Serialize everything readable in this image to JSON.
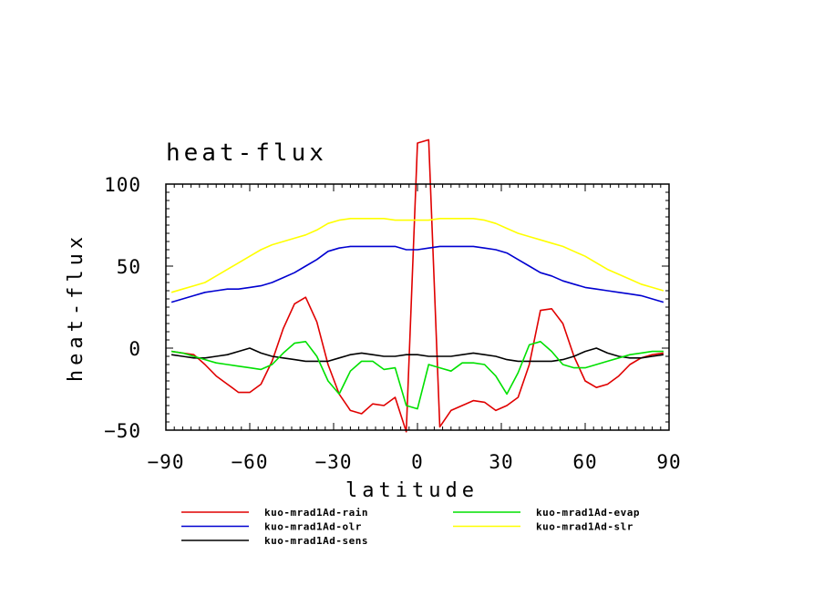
{
  "chart_data": {
    "type": "line",
    "title": "heat-flux",
    "xlabel": "latitude",
    "ylabel": "heat-flux",
    "xlim": [
      -90,
      90
    ],
    "ylim": [
      -50,
      100
    ],
    "xticks": [
      -90,
      -60,
      -30,
      0,
      30,
      60,
      90
    ],
    "yticks": [
      -50,
      0,
      50,
      100
    ],
    "xtick_labels": [
      "−90",
      "−60",
      "−30",
      "0",
      "30",
      "60",
      "90"
    ],
    "ytick_labels": [
      "−50",
      "0",
      "50",
      "100"
    ],
    "grid": false,
    "legend_position": "bottom",
    "x": [
      -88,
      -84,
      -80,
      -76,
      -72,
      -68,
      -64,
      -60,
      -56,
      -52,
      -48,
      -44,
      -40,
      -36,
      -32,
      -28,
      -24,
      -20,
      -16,
      -12,
      -8,
      -4,
      0,
      4,
      8,
      12,
      16,
      20,
      24,
      28,
      32,
      36,
      40,
      44,
      48,
      52,
      56,
      60,
      64,
      68,
      72,
      76,
      80,
      84,
      88
    ],
    "series": [
      {
        "name": "kuo-mrad1Ad-rain",
        "color": "#e00000",
        "values": [
          -2,
          -3,
          -4,
          -10,
          -17,
          -22,
          -27,
          -27,
          -22,
          -8,
          12,
          27,
          31,
          16,
          -10,
          -28,
          -38,
          -40,
          -34,
          -35,
          -30,
          -51,
          125,
          127,
          -48,
          -38,
          -35,
          -32,
          -33,
          -38,
          -35,
          -30,
          -10,
          23,
          24,
          15,
          -5,
          -20,
          -24,
          -22,
          -17,
          -10,
          -6,
          -4,
          -3
        ]
      },
      {
        "name": "kuo-mrad1Ad-olr",
        "color": "#0000d0",
        "values": [
          28,
          30,
          32,
          34,
          35,
          36,
          36,
          37,
          38,
          40,
          43,
          46,
          50,
          54,
          59,
          61,
          62,
          62,
          62,
          62,
          62,
          60,
          60,
          61,
          62,
          62,
          62,
          62,
          61,
          60,
          58,
          54,
          50,
          46,
          44,
          41,
          39,
          37,
          36,
          35,
          34,
          33,
          32,
          30,
          28
        ]
      },
      {
        "name": "kuo-mrad1Ad-sens",
        "color": "#000000",
        "values": [
          -4,
          -5,
          -6,
          -6,
          -5,
          -4,
          -2,
          0,
          -3,
          -5,
          -6,
          -7,
          -8,
          -8,
          -8,
          -6,
          -4,
          -3,
          -4,
          -5,
          -5,
          -4,
          -4,
          -5,
          -5,
          -5,
          -4,
          -3,
          -4,
          -5,
          -7,
          -8,
          -8,
          -8,
          -8,
          -7,
          -5,
          -2,
          0,
          -3,
          -5,
          -6,
          -6,
          -5,
          -4
        ]
      },
      {
        "name": "kuo-mrad1Ad-evap",
        "color": "#00e000",
        "values": [
          -2,
          -3,
          -5,
          -7,
          -9,
          -10,
          -11,
          -12,
          -13,
          -10,
          -3,
          3,
          4,
          -5,
          -20,
          -28,
          -14,
          -8,
          -8,
          -13,
          -12,
          -35,
          -37,
          -10,
          -12,
          -14,
          -9,
          -9,
          -10,
          -17,
          -28,
          -15,
          2,
          4,
          -2,
          -10,
          -12,
          -12,
          -10,
          -8,
          -6,
          -4,
          -3,
          -2,
          -2
        ]
      },
      {
        "name": "kuo-mrad1Ad-slr",
        "color": "#ffff00",
        "values": [
          34,
          36,
          38,
          40,
          44,
          48,
          52,
          56,
          60,
          63,
          65,
          67,
          69,
          72,
          76,
          78,
          79,
          79,
          79,
          79,
          78,
          78,
          78,
          78,
          79,
          79,
          79,
          79,
          78,
          76,
          73,
          70,
          68,
          66,
          64,
          62,
          59,
          56,
          52,
          48,
          45,
          42,
          39,
          37,
          35
        ]
      }
    ]
  }
}
